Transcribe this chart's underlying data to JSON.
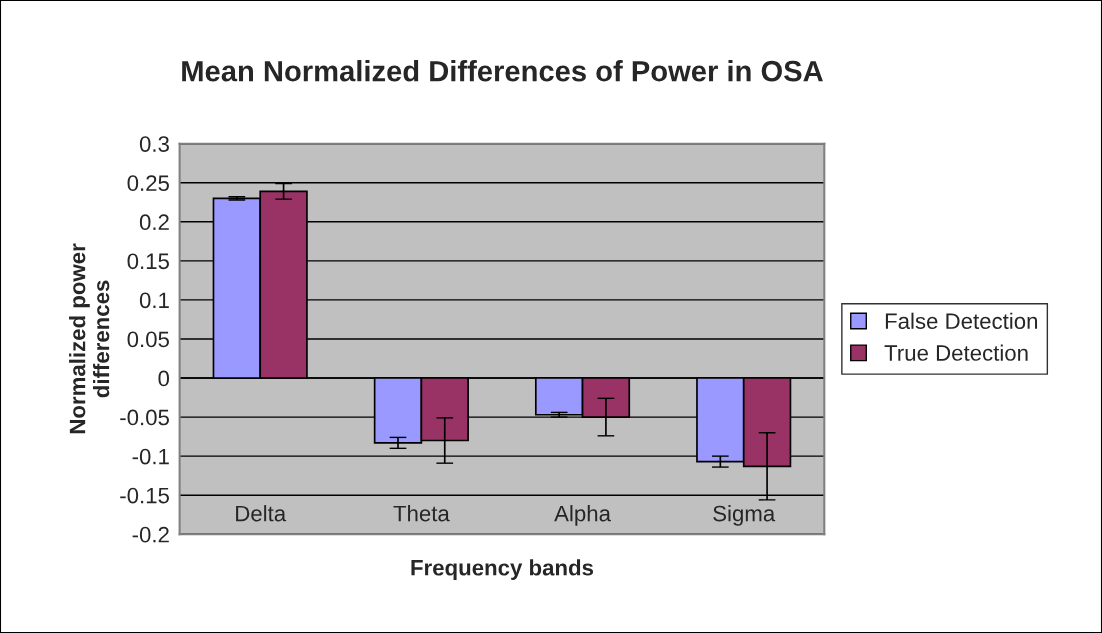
{
  "chart_data": {
    "type": "bar",
    "title": "Mean Normalized Differences of Power in OSA",
    "xlabel": "Frequency bands",
    "ylabel": "Normalized power\ndifferences",
    "categories": [
      "Delta",
      "Theta",
      "Alpha",
      "Sigma"
    ],
    "series": [
      {
        "name": "False Detection",
        "color": "#9999ff",
        "values": [
          0.23,
          -0.083,
          -0.047,
          -0.107
        ],
        "errors": [
          0.002,
          0.007,
          0.003,
          0.007
        ]
      },
      {
        "name": "True Detection",
        "color": "#993366",
        "values": [
          0.239,
          -0.08,
          -0.05,
          -0.113
        ],
        "errors": [
          0.01,
          0.029,
          0.024,
          0.043
        ]
      }
    ],
    "ylim": [
      -0.2,
      0.3
    ],
    "yticks": [
      {
        "value": -0.2,
        "label": "-0.2"
      },
      {
        "value": -0.15,
        "label": "-0.15"
      },
      {
        "value": -0.1,
        "label": "-0.1"
      },
      {
        "value": -0.05,
        "label": "-0.05"
      },
      0,
      0.05,
      0.1,
      0.15,
      0.2,
      0.25,
      0.3
    ],
    "grid": "y",
    "legend": "right"
  }
}
